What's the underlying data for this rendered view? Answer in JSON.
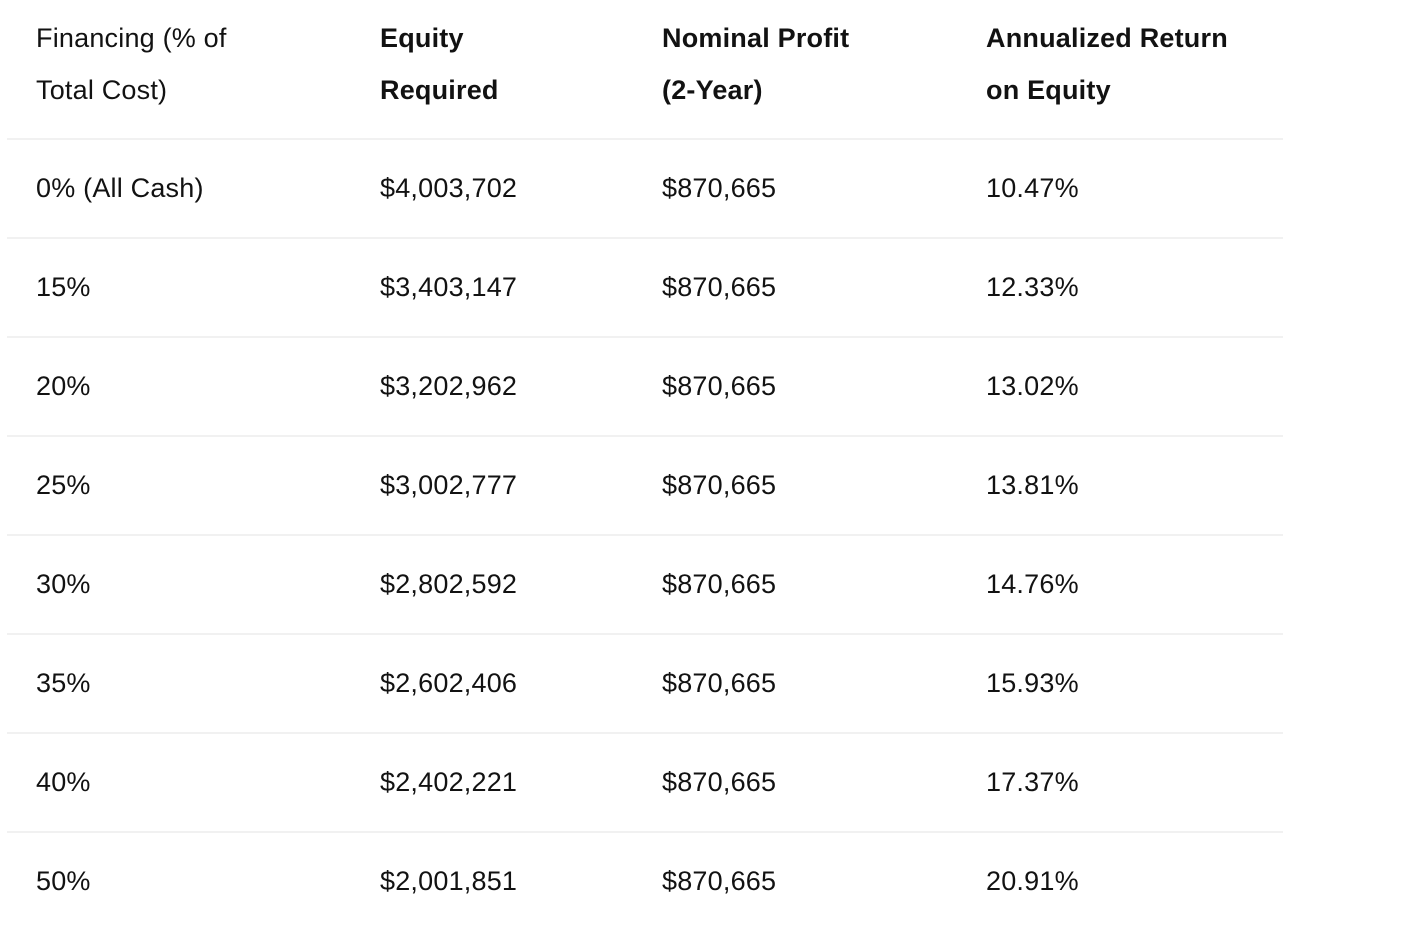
{
  "table": {
    "columns": [
      {
        "id": "financing",
        "label": "Financing (% of Total Cost)"
      },
      {
        "id": "equity_required",
        "label": "Equity Required"
      },
      {
        "id": "nominal_profit",
        "label": "Nominal Profit (2-Year)"
      },
      {
        "id": "annualized_return",
        "label": "Annualized Return on Equity"
      }
    ],
    "rows": [
      {
        "financing": "0% (All Cash)",
        "equity_required": "$4,003,702",
        "nominal_profit": "$870,665",
        "annualized_return": "10.47%"
      },
      {
        "financing": "15%",
        "equity_required": "$3,403,147",
        "nominal_profit": "$870,665",
        "annualized_return": "12.33%"
      },
      {
        "financing": "20%",
        "equity_required": "$3,202,962",
        "nominal_profit": "$870,665",
        "annualized_return": "13.02%"
      },
      {
        "financing": "25%",
        "equity_required": "$3,002,777",
        "nominal_profit": "$870,665",
        "annualized_return": "13.81%"
      },
      {
        "financing": "30%",
        "equity_required": "$2,802,592",
        "nominal_profit": "$870,665",
        "annualized_return": "14.76%"
      },
      {
        "financing": "35%",
        "equity_required": "$2,602,406",
        "nominal_profit": "$870,665",
        "annualized_return": "15.93%"
      },
      {
        "financing": "40%",
        "equity_required": "$2,402,221",
        "nominal_profit": "$870,665",
        "annualized_return": "17.37%"
      },
      {
        "financing": "50%",
        "equity_required": "$2,001,851",
        "nominal_profit": "$870,665",
        "annualized_return": "20.91%"
      }
    ]
  },
  "colors": {
    "text": "#121212",
    "header_divider": "#e8e8e8",
    "row_divider": "#f1f1f1",
    "background": "#ffffff"
  }
}
